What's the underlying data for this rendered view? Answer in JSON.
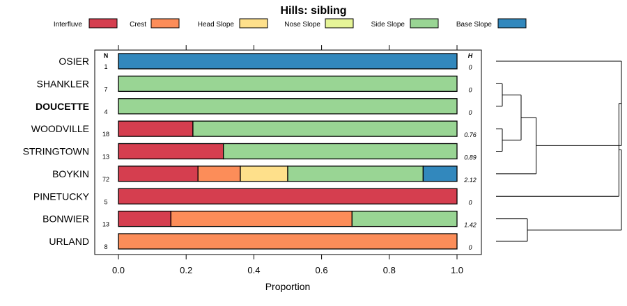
{
  "chart_data": {
    "type": "bar",
    "stacked": true,
    "orientation": "horizontal",
    "title": "Hills: sibling",
    "xlabel": "Proportion",
    "ylabel": "",
    "xlim": [
      0,
      1
    ],
    "xticks": [
      "0.0",
      "0.2",
      "0.4",
      "0.6",
      "0.8",
      "1.0"
    ],
    "n_header": "N",
    "h_header": "H",
    "legend": [
      {
        "name": "Interfluve",
        "color": "#d53e4f"
      },
      {
        "name": "Crest",
        "color": "#fc8d59"
      },
      {
        "name": "Head Slope",
        "color": "#fee08b"
      },
      {
        "name": "Nose Slope",
        "color": "#e6f598"
      },
      {
        "name": "Side Slope",
        "color": "#99d594"
      },
      {
        "name": "Base Slope",
        "color": "#3288bd"
      }
    ],
    "rows": [
      {
        "label": "OSIER",
        "bold": false,
        "n": "1",
        "h": "0",
        "values": [
          0,
          0,
          0,
          0,
          0,
          1.0
        ]
      },
      {
        "label": "SHANKLER",
        "bold": false,
        "n": "7",
        "h": "0",
        "values": [
          0,
          0,
          0,
          0,
          1.0,
          0
        ]
      },
      {
        "label": "DOUCETTE",
        "bold": true,
        "n": "4",
        "h": "0",
        "values": [
          0,
          0,
          0,
          0,
          1.0,
          0
        ]
      },
      {
        "label": "WOODVILLE",
        "bold": false,
        "n": "18",
        "h": "0.76",
        "values": [
          0.22,
          0,
          0,
          0,
          0.78,
          0
        ]
      },
      {
        "label": "STRINGTOWN",
        "bold": false,
        "n": "13",
        "h": "0.89",
        "values": [
          0.31,
          0,
          0,
          0,
          0.69,
          0
        ]
      },
      {
        "label": "BOYKIN",
        "bold": false,
        "n": "72",
        "h": "2.12",
        "values": [
          0.235,
          0.125,
          0.14,
          0,
          0.4,
          0.1
        ]
      },
      {
        "label": "PINETUCKY",
        "bold": false,
        "n": "5",
        "h": "0",
        "values": [
          1.0,
          0,
          0,
          0,
          0,
          0
        ]
      },
      {
        "label": "BONWIER",
        "bold": false,
        "n": "13",
        "h": "1.42",
        "values": [
          0.155,
          0.535,
          0,
          0,
          0.31,
          0
        ]
      },
      {
        "label": "URLAND",
        "bold": false,
        "n": "8",
        "h": "0",
        "values": [
          0,
          1.0,
          0,
          0,
          0,
          0
        ]
      }
    ],
    "dendrogram": {
      "merges": [
        {
          "a": "SHANKLER",
          "b": "DOUCETTE",
          "height": 0.05
        },
        {
          "a": "WOODVILLE",
          "b": "STRINGTOWN",
          "height": 0.05
        },
        {
          "a": "BONWIER",
          "b": "URLAND",
          "height": 0.25
        },
        {
          "a": "m0",
          "b": "m1",
          "height": 0.2
        },
        {
          "a": "m3",
          "b": "BOYKIN",
          "height": 0.32
        },
        {
          "a": "m4",
          "b": "OSIER",
          "height": 1.0
        },
        {
          "a": "m5",
          "b": "PINETUCKY",
          "height": 0.98
        },
        {
          "a": "m6",
          "b": "m2",
          "height": 1.0
        }
      ],
      "max_height": 1.0
    }
  }
}
